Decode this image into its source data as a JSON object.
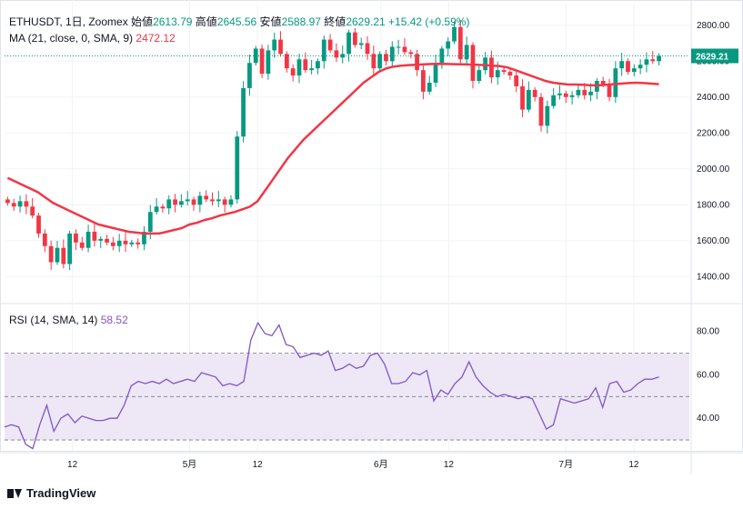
{
  "header": {
    "symbol": "ETHUSDT, 1日, Zoomex",
    "open_label": "始値",
    "open": "2613.79",
    "high_label": "高値",
    "high": "2645.56",
    "low_label": "安値",
    "low": "2588.97",
    "close_label": "終値",
    "close": "2629.21",
    "change": "+15.42 (+0.59%)",
    "ma_label": "MA (21, close, 0, SMA, 9)",
    "ma_value": "2472.12",
    "rsi_label": "RSI (14, SMA, 14)",
    "rsi_value": "58.52",
    "brand": "TradingView"
  },
  "colors": {
    "up": "#089981",
    "down": "#f23645",
    "ma": "#f23645",
    "rsi": "#7e57c2",
    "rsi_band": "#ede7f6",
    "grid": "#f0f3fa",
    "price_tag": "#089981"
  },
  "chart_data": [
    {
      "type": "candlestick",
      "title": "ETHUSDT, 1日, Zoomex",
      "current_price": 2629.21,
      "current_price_label": "2629.21",
      "ylim": [
        1260,
        2900
      ],
      "y_ticks": [
        1400,
        1600,
        1800,
        2000,
        2200,
        2400,
        2600,
        2800
      ],
      "y_tick_labels": [
        "1400.00",
        "1600.00",
        "1800.00",
        "2000.00",
        "2200.00",
        "2400.00",
        "2600.00",
        "2800.00"
      ],
      "x_tick_labels": [
        "12",
        "5月",
        "12",
        "6月",
        "12",
        "7月",
        "12"
      ],
      "x_tick_days": [
        11,
        30,
        41,
        61,
        72,
        91,
        102
      ],
      "x_range_days": [
        0,
        111
      ],
      "candles_close": [
        1810,
        1790,
        1820,
        1790,
        1740,
        1640,
        1570,
        1480,
        1560,
        1470,
        1640,
        1590,
        1560,
        1650,
        1600,
        1610,
        1590,
        1570,
        1600,
        1580,
        1590,
        1580,
        1650,
        1760,
        1790,
        1780,
        1830,
        1800,
        1820,
        1830,
        1800,
        1850,
        1830,
        1820,
        1830,
        1800,
        1830,
        2180,
        2450,
        2590,
        2670,
        2530,
        2660,
        2720,
        2640,
        2560,
        2520,
        2610,
        2550,
        2560,
        2600,
        2720,
        2660,
        2620,
        2640,
        2760,
        2690,
        2700,
        2640,
        2560,
        2640,
        2600,
        2680,
        2680,
        2650,
        2640,
        2550,
        2430,
        2480,
        2590,
        2670,
        2710,
        2790,
        2610,
        2690,
        2490,
        2550,
        2620,
        2510,
        2550,
        2540,
        2520,
        2460,
        2330,
        2440,
        2400,
        2240,
        2350,
        2410,
        2420,
        2400,
        2410,
        2440,
        2410,
        2430,
        2490,
        2470,
        2400,
        2560,
        2600,
        2540,
        2560,
        2580,
        2610,
        2600,
        2629
      ],
      "ma_21": [
        1950,
        1930,
        1910,
        1890,
        1870,
        1840,
        1810,
        1790,
        1770,
        1750,
        1730,
        1710,
        1690,
        1680,
        1670,
        1660,
        1650,
        1645,
        1640,
        1640,
        1640,
        1650,
        1660,
        1670,
        1690,
        1700,
        1715,
        1725,
        1740,
        1750,
        1760,
        1775,
        1790,
        1820,
        1880,
        1940,
        2000,
        2060,
        2110,
        2160,
        2200,
        2240,
        2280,
        2320,
        2360,
        2400,
        2440,
        2480,
        2510,
        2540,
        2560,
        2570,
        2575,
        2578,
        2580,
        2582,
        2584,
        2585,
        2584,
        2583,
        2582,
        2581,
        2580,
        2578,
        2575,
        2572,
        2565,
        2550,
        2535,
        2520,
        2505,
        2490,
        2480,
        2475,
        2470,
        2470,
        2468,
        2465,
        2465,
        2468,
        2472,
        2475,
        2478,
        2480,
        2478,
        2475,
        2472
      ]
    },
    {
      "type": "line",
      "title": "RSI (14, SMA, 14)",
      "ylim": [
        25,
        92
      ],
      "y_ticks": [
        40,
        60,
        80
      ],
      "y_tick_labels": [
        "40.00",
        "60.00",
        "80.00"
      ],
      "band": [
        30,
        70
      ],
      "midline": 50,
      "rsi": [
        36,
        37,
        36,
        28,
        26,
        37,
        46,
        34,
        40,
        42,
        38,
        41,
        40,
        39,
        39,
        40,
        40,
        46,
        55,
        57,
        56,
        57,
        56,
        58,
        56,
        57,
        58,
        57,
        61,
        60,
        59,
        55,
        56,
        55,
        57,
        76,
        84,
        79,
        78,
        83,
        74,
        73,
        68,
        69,
        70,
        69,
        71,
        62,
        63,
        65,
        63,
        64,
        69,
        70,
        65,
        56,
        56,
        57,
        61,
        60,
        62,
        48,
        53,
        51,
        56,
        59,
        66,
        59,
        55,
        52,
        50,
        51,
        50,
        49,
        50,
        49,
        42,
        35,
        37,
        49,
        48,
        47,
        48,
        49,
        54,
        45,
        56,
        57,
        52,
        53,
        56,
        58,
        58,
        59
      ]
    }
  ]
}
